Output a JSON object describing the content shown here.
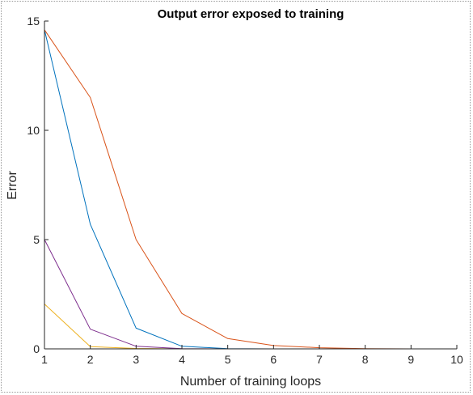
{
  "chart_data": {
    "type": "line",
    "title": "Output error exposed to training",
    "xlabel": "Number of training loops",
    "ylabel": "Error",
    "xlim": [
      1,
      10
    ],
    "ylim": [
      0,
      15
    ],
    "xticks": [
      1,
      2,
      3,
      4,
      5,
      6,
      7,
      8,
      9,
      10
    ],
    "yticks": [
      0,
      5,
      10,
      15
    ],
    "grid": false,
    "x": [
      1,
      2,
      3,
      4,
      5,
      6,
      7,
      8,
      9,
      10
    ],
    "series": [
      {
        "color": "#0072BD",
        "values": [
          14.6,
          5.7,
          0.95,
          0.12,
          0.01,
          0.0,
          0.0,
          0.0,
          0.0,
          0.0
        ]
      },
      {
        "color": "#D95319",
        "values": [
          14.6,
          11.5,
          5.0,
          1.62,
          0.47,
          0.15,
          0.05,
          0.01,
          0.0,
          0.0
        ]
      },
      {
        "color": "#EDB120",
        "values": [
          2.05,
          0.1,
          0.02,
          0.0,
          0.0,
          0.0,
          0.0,
          0.0,
          0.0,
          0.0
        ]
      },
      {
        "color": "#7E2F8E",
        "values": [
          5.0,
          0.9,
          0.12,
          0.01,
          0.0,
          0.0,
          0.0,
          0.0,
          0.0,
          0.0
        ]
      }
    ]
  }
}
